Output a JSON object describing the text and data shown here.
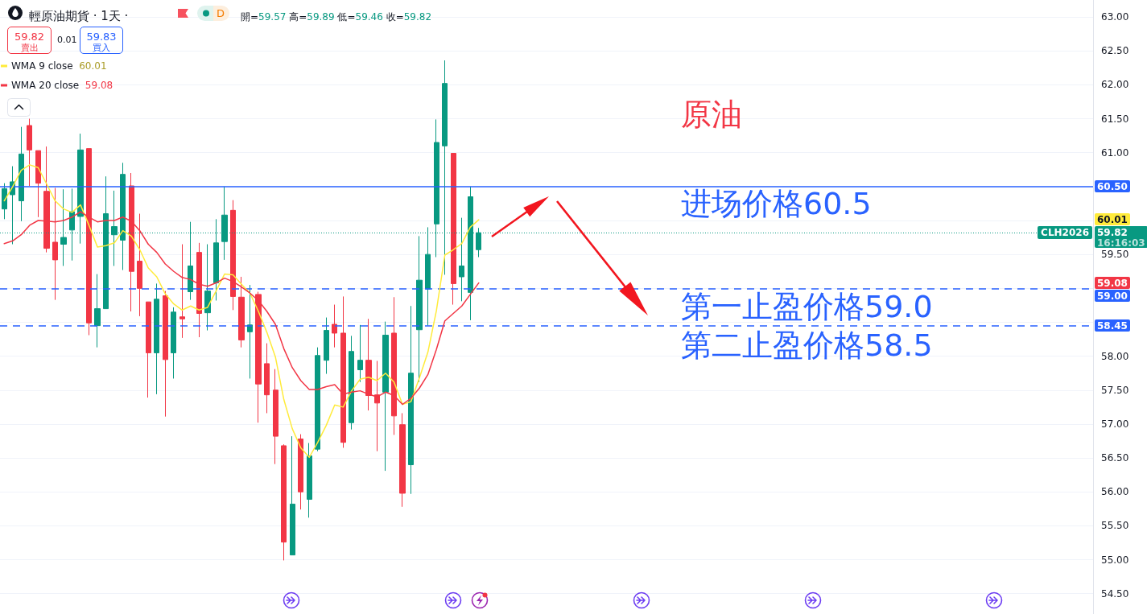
{
  "chart_data": {
    "type": "candlestick",
    "title": "輕原油期貨 · 1天 ·",
    "subtitle": "開=59.57 高=59.89 低=59.46 收=59.82",
    "categories": [
      null,
      null,
      null,
      null,
      null,
      null,
      null,
      null,
      null,
      null,
      null,
      null,
      null,
      null,
      null,
      null,
      null,
      null,
      null,
      null,
      null,
      null,
      null,
      null,
      null,
      null,
      null,
      null,
      null,
      null,
      null,
      null,
      null,
      null,
      null,
      null,
      null,
      null,
      null,
      null,
      null,
      null,
      null,
      null,
      null,
      null,
      null,
      null,
      null,
      null,
      null,
      null,
      null,
      null,
      null,
      null,
      null,
      null,
      null,
      null,
      null,
      null,
      null,
      null,
      null,
      null,
      null,
      null,
      null,
      null,
      null,
      null,
      null,
      null,
      null,
      null,
      null,
      null,
      null,
      null,
      null,
      null,
      null,
      null,
      null,
      null,
      null,
      null,
      null,
      null,
      null,
      null,
      null,
      null,
      null,
      null,
      null,
      null,
      null,
      null,
      null,
      null,
      null,
      null,
      null,
      null,
      null,
      null,
      null,
      null,
      null,
      null,
      null,
      null,
      null,
      null,
      null,
      null,
      null,
      null,
      null,
      null,
      null,
      null,
      null,
      null,
      null,
      null,
      null
    ],
    "ohlc": [
      [
        60.17,
        60.55,
        60.02,
        60.47
      ],
      [
        60.38,
        60.8,
        59.65,
        60.57
      ],
      [
        60.29,
        61.38,
        59.99,
        60.98
      ],
      [
        61.4,
        61.5,
        60.51,
        61.04
      ],
      [
        61.03,
        61.03,
        60.05,
        60.55
      ],
      [
        60.43,
        61.09,
        59.53,
        59.59
      ],
      [
        59.68,
        60.48,
        58.83,
        59.42
      ],
      [
        59.65,
        60.46,
        59.33,
        59.75
      ],
      [
        59.86,
        60.47,
        59.41,
        60.13
      ],
      [
        60.06,
        61.28,
        59.66,
        61.04
      ],
      [
        61.06,
        61.06,
        58.31,
        58.49
      ],
      [
        58.45,
        59.21,
        58.13,
        58.7
      ],
      [
        58.7,
        60.65,
        58.7,
        60.1
      ],
      [
        59.79,
        60.44,
        59.33,
        59.91
      ],
      [
        59.71,
        60.85,
        59.27,
        60.68
      ],
      [
        60.51,
        60.7,
        58.66,
        59.25
      ],
      [
        59.4,
        60.1,
        58.59,
        59.0
      ],
      [
        58.8,
        58.8,
        57.39,
        58.05
      ],
      [
        58.05,
        59.07,
        57.44,
        58.84
      ],
      [
        58.89,
        58.96,
        57.11,
        57.95
      ],
      [
        58.05,
        58.72,
        57.67,
        58.65
      ],
      [
        58.58,
        59.65,
        58.27,
        58.55
      ],
      [
        58.95,
        59.98,
        58.83,
        59.33
      ],
      [
        59.53,
        59.67,
        58.28,
        58.63
      ],
      [
        58.64,
        59.65,
        58.38,
        58.96
      ],
      [
        59.08,
        60.02,
        58.82,
        59.67
      ],
      [
        59.69,
        60.5,
        59.42,
        60.08
      ],
      [
        60.15,
        60.3,
        58.68,
        58.88
      ],
      [
        58.87,
        59.17,
        58.13,
        58.24
      ],
      [
        58.36,
        59.05,
        57.67,
        58.46
      ],
      [
        58.91,
        58.95,
        57.02,
        57.59
      ],
      [
        57.89,
        58.19,
        57.16,
        57.43
      ],
      [
        57.5,
        57.81,
        56.41,
        56.82
      ],
      [
        56.68,
        56.7,
        54.99,
        55.26
      ],
      [
        55.07,
        56.82,
        55.07,
        55.82
      ],
      [
        56.78,
        56.85,
        55.74,
        56.0
      ],
      [
        55.89,
        56.72,
        55.62,
        56.53
      ],
      [
        56.63,
        58.13,
        56.6,
        58.01
      ],
      [
        57.94,
        58.57,
        57.74,
        58.38
      ],
      [
        58.47,
        58.76,
        58.13,
        58.34
      ],
      [
        58.34,
        58.88,
        56.65,
        56.73
      ],
      [
        57.02,
        58.3,
        56.92,
        58.07
      ],
      [
        57.8,
        58.46,
        57.62,
        57.94
      ],
      [
        57.94,
        58.55,
        57.2,
        57.42
      ],
      [
        57.43,
        57.93,
        56.6,
        57.31
      ],
      [
        57.47,
        58.51,
        56.31,
        58.31
      ],
      [
        58.34,
        58.87,
        56.84,
        57.12
      ],
      [
        56.99,
        57.16,
        55.78,
        55.98
      ],
      [
        56.4,
        58.74,
        55.97,
        57.75
      ],
      [
        58.39,
        59.77,
        57.62,
        59.12
      ],
      [
        58.99,
        59.9,
        58.45,
        59.5
      ],
      [
        59.95,
        61.49,
        59.46,
        61.15
      ],
      [
        61.1,
        62.36,
        59.2,
        62.02
      ],
      [
        60.99,
        60.99,
        58.76,
        59.07
      ],
      [
        59.17,
        60.04,
        58.81,
        59.33
      ],
      [
        58.94,
        60.5,
        58.53,
        60.35
      ],
      [
        59.57,
        59.89,
        59.46,
        59.82
      ],
      null,
      null,
      null,
      null,
      null,
      null,
      null,
      null,
      null,
      null,
      null,
      null,
      null,
      null,
      null,
      null,
      null,
      null,
      null,
      null,
      null,
      null,
      null,
      null,
      null,
      null,
      null,
      null,
      null,
      null,
      null,
      null,
      null,
      null,
      null,
      null,
      null,
      null,
      null,
      null,
      null,
      null,
      null,
      null,
      null,
      null,
      null,
      null,
      null,
      null,
      null,
      null,
      null,
      null,
      null,
      null,
      null,
      null,
      null,
      null,
      null,
      null,
      null,
      null,
      null,
      null,
      null,
      null,
      null,
      null,
      null,
      null
    ],
    "colors": [
      "#089981",
      "#089981",
      "#089981",
      "#f23645",
      "#f23645",
      "#f23645",
      "#f23645",
      "#089981",
      "#089981",
      "#089981",
      "#f23645",
      "#089981",
      "#089981",
      "#089981",
      "#089981",
      "#f23645",
      "#f23645",
      "#f23645",
      "#089981",
      "#f23645",
      "#089981",
      "#f23645",
      "#089981",
      "#f23645",
      "#089981",
      "#089981",
      "#089981",
      "#f23645",
      "#f23645",
      "#089981",
      "#f23645",
      "#f23645",
      "#f23645",
      "#f23645",
      "#089981",
      "#f23645",
      "#089981",
      "#089981",
      "#089981",
      "#f23645",
      "#f23645",
      "#089981",
      "#089981",
      "#f23645",
      "#f23645",
      "#089981",
      "#f23645",
      "#f23645",
      "#089981",
      "#089981",
      "#089981",
      "#089981",
      "#089981",
      "#f23645",
      "#089981",
      "#089981",
      "#089981",
      null,
      null,
      null,
      null,
      null,
      null,
      null,
      null,
      null,
      null,
      null,
      null,
      null,
      null,
      null,
      null,
      null,
      null,
      null,
      null,
      null,
      null,
      null,
      null,
      null,
      null,
      null,
      null,
      null,
      null,
      null,
      null,
      null,
      null,
      null,
      null,
      null,
      null,
      null,
      null,
      null,
      null,
      null,
      null,
      null,
      null,
      null,
      null,
      null,
      null,
      null,
      null,
      null,
      null,
      null,
      null,
      null,
      null,
      null,
      null,
      null,
      null,
      null,
      null,
      null,
      null,
      null,
      null,
      null,
      null,
      null,
      null
    ],
    "series": [
      {
        "name": "WMA 9 close",
        "type": "line",
        "color": "#ffeb3b",
        "values": [
          60.29,
          60.5,
          60.74,
          60.82,
          60.78,
          60.54,
          60.29,
          60.17,
          60.12,
          60.23,
          59.93,
          59.61,
          59.63,
          59.67,
          59.85,
          59.77,
          59.57,
          59.3,
          59.17,
          58.92,
          58.77,
          58.68,
          58.74,
          58.68,
          58.72,
          58.96,
          59.21,
          59.2,
          59.06,
          58.93,
          58.66,
          58.35,
          57.99,
          57.36,
          56.93,
          56.65,
          56.51,
          56.73,
          56.98,
          57.28,
          57.25,
          57.49,
          57.66,
          57.69,
          57.64,
          57.75,
          57.62,
          57.29,
          57.33,
          57.68,
          58.06,
          58.67,
          59.49,
          59.57,
          59.66,
          59.9,
          60.01,
          null,
          null,
          null,
          null,
          null,
          null,
          null,
          null,
          null,
          null,
          null,
          null,
          null,
          null,
          null,
          null,
          null,
          null,
          null,
          null,
          null,
          null,
          null,
          null,
          null,
          null,
          null,
          null,
          null,
          null,
          null,
          null,
          null,
          null,
          null,
          null,
          null,
          null,
          null,
          null,
          null,
          null,
          null,
          null,
          null,
          null,
          null,
          null,
          null,
          null,
          null,
          null,
          null,
          null,
          null,
          null,
          null,
          null,
          null,
          null,
          null,
          null,
          null,
          null,
          null,
          null,
          null,
          null,
          null,
          null,
          null,
          null
        ]
      },
      {
        "name": "WMA 20 close",
        "type": "line",
        "color": "#f23645",
        "values": [
          59.66,
          59.7,
          59.79,
          59.93,
          60.0,
          59.99,
          59.98,
          60.0,
          60.05,
          60.13,
          60.05,
          59.98,
          60.0,
          60.0,
          60.05,
          59.99,
          59.85,
          59.65,
          59.53,
          59.36,
          59.25,
          59.16,
          59.13,
          59.06,
          59.03,
          59.08,
          59.15,
          59.1,
          59.02,
          58.93,
          58.82,
          58.66,
          58.47,
          58.11,
          57.83,
          57.64,
          57.51,
          57.51,
          57.55,
          57.58,
          57.44,
          57.47,
          57.49,
          57.44,
          57.4,
          57.47,
          57.42,
          57.29,
          57.38,
          57.53,
          57.73,
          58.1,
          58.52,
          58.63,
          58.74,
          58.91,
          59.08,
          null,
          null,
          null,
          null,
          null,
          null,
          null,
          null,
          null,
          null,
          null,
          null,
          null,
          null,
          null,
          null,
          null,
          null,
          null,
          null,
          null,
          null,
          null,
          null,
          null,
          null,
          null,
          null,
          null,
          null,
          null,
          null,
          null,
          null,
          null,
          null,
          null,
          null,
          null,
          null,
          null,
          null,
          null,
          null,
          null,
          null,
          null,
          null,
          null,
          null,
          null,
          null,
          null,
          null,
          null,
          null,
          null,
          null,
          null,
          null,
          null,
          null,
          null,
          null,
          null,
          null,
          null,
          null,
          null,
          null,
          null,
          null
        ]
      }
    ],
    "ylim": [
      54.2,
      63.25
    ],
    "yticks": [
      {
        "value": 54.5,
        "label": "54.50"
      },
      {
        "value": 55,
        "label": "55.00"
      },
      {
        "value": 55.5,
        "label": "55.50"
      },
      {
        "value": 56,
        "label": "56.00"
      },
      {
        "value": 56.5,
        "label": "56.50"
      },
      {
        "value": 57,
        "label": "57.00"
      },
      {
        "value": 57.5,
        "label": "57.50"
      },
      {
        "value": 58,
        "label": "58.00"
      },
      {
        "value": 58.5,
        "label": null
      },
      {
        "value": 59,
        "label": null
      },
      {
        "value": 59.5,
        "label": "59.50"
      },
      {
        "value": 60,
        "label": null
      },
      {
        "value": 60.5,
        "label": null
      },
      {
        "value": 61,
        "label": "61.00"
      },
      {
        "value": 61.5,
        "label": "61.50"
      },
      {
        "value": 62,
        "label": "62.00"
      },
      {
        "value": 62.5,
        "label": "62.50"
      },
      {
        "value": 63,
        "label": "63.00"
      }
    ],
    "ref_lines": [
      {
        "axis": "y",
        "value": 60.5,
        "label": "60.50",
        "color": "#2962ff",
        "line_style": "solid"
      },
      {
        "axis": "y",
        "value": 59.0,
        "label": "59.00",
        "color": "#2962ff",
        "line_style": "dashed"
      },
      {
        "axis": "y",
        "value": 58.45,
        "label": "58.45",
        "color": "#2962ff",
        "line_style": "dashed"
      },
      {
        "axis": "y",
        "value": 59.82,
        "label": "59.82",
        "color": "#089981",
        "line_style": "dotted"
      }
    ],
    "annotations": [
      "D",
      "59.82",
      "賣出",
      "0.01",
      "59.83",
      "買入",
      "原油",
      "进场价格60.5",
      "第一止盈价格59.0",
      "第二止盈价格58.5",
      {
        "text": "CLH2026",
        "y": 59.82
      },
      "16:16:03",
      {
        "text": "60.01",
        "y": 60.01
      },
      {
        "text": "59.08",
        "y": 59.08
      }
    ],
    "grid": "y",
    "legend": "top left",
    "tick_labels": "y",
    "marker": "none"
  }
}
